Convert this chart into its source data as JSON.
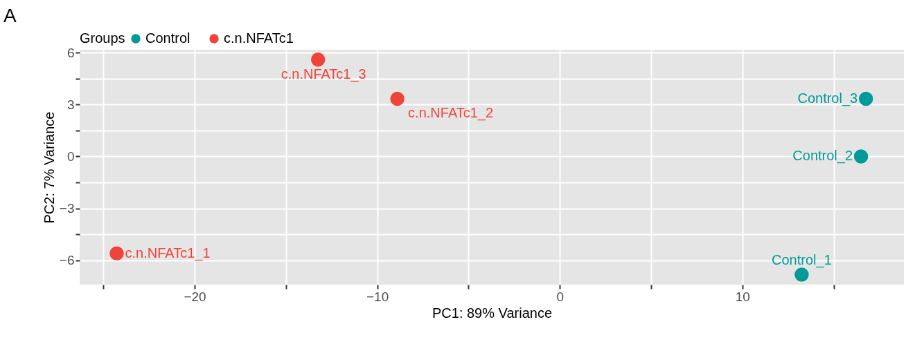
{
  "chart_data": {
    "type": "scatter",
    "xlabel": "PC1: 89% Variance",
    "ylabel": "PC2: 7% Variance",
    "legend_title": "Groups",
    "legend": "top",
    "grid": true,
    "marker": "circle",
    "xlim": [
      -26.3,
      18.85
    ],
    "ylim": [
      -7.4,
      6.16
    ],
    "xticks": [
      {
        "value": -25,
        "label": null
      },
      -20,
      {
        "value": -15,
        "label": null
      },
      -10,
      {
        "value": -5,
        "label": null
      },
      0,
      {
        "value": 5,
        "label": null
      },
      10,
      {
        "value": 15,
        "label": null
      }
    ],
    "yticks": [
      -6,
      {
        "value": -4.5,
        "label": null
      },
      -3,
      {
        "value": -1.5,
        "label": null
      },
      0,
      {
        "value": 1.5,
        "label": null
      },
      3,
      {
        "value": 4.5,
        "label": null
      },
      6
    ],
    "series": [
      {
        "name": "Control",
        "color": "#009a9a",
        "x": [
          13.25,
          16.5,
          16.77
        ],
        "values": [
          -6.82,
          0,
          3.33
        ]
      },
      {
        "name": "c.n.NFATc1",
        "color": "#f0443a",
        "x": [
          -24.27,
          -8.9,
          -13.24
        ],
        "values": [
          -5.6,
          3.33,
          5.59
        ]
      }
    ],
    "annotations": [
      "A",
      {
        "text": "Control_1",
        "x": 13.25,
        "y": -6.82
      },
      {
        "text": "Control_2",
        "x": 16.5,
        "y": 0
      },
      {
        "text": "Control_3",
        "x": 16.77,
        "y": 3.33
      },
      {
        "text": "c.n.NFATc1_1",
        "x": -24.27,
        "y": -5.6
      },
      {
        "text": "c.n.NFATc1_2",
        "x": -8.9,
        "y": 3.33
      },
      {
        "text": "c.n.NFATc1_3",
        "x": -13.24,
        "y": 5.59
      }
    ]
  }
}
